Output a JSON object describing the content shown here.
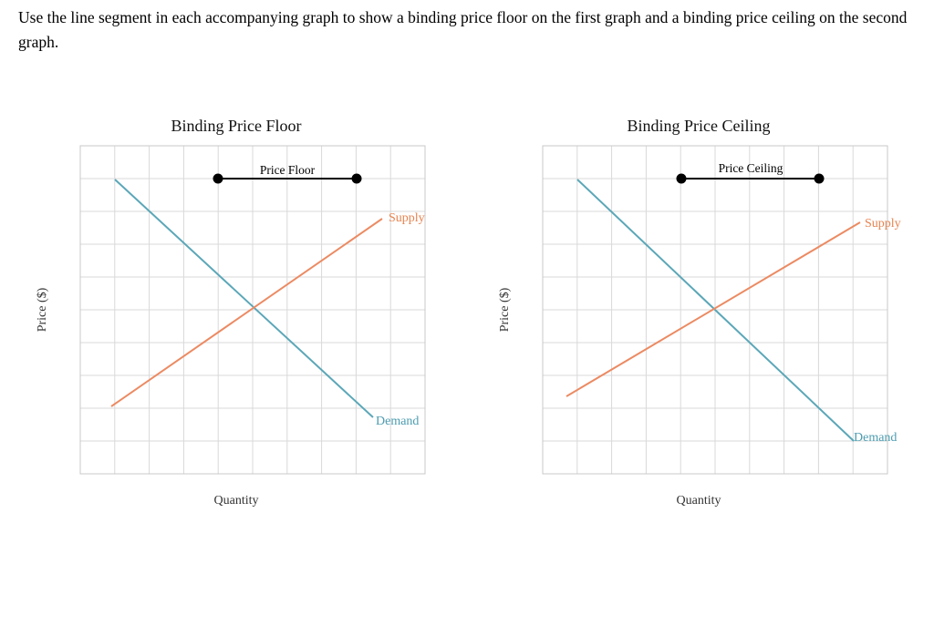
{
  "instructions": "Use the line segment in each accompanying graph to show a binding price floor on the first graph and a binding price ceiling on the second graph.",
  "graphs": [
    {
      "title": "Binding Price Floor",
      "xlabel": "Quantity",
      "ylabel": "Price ($)",
      "segment_label": "Price Floor",
      "supply_label": "Supply",
      "demand_label": "Demand"
    },
    {
      "title": "Binding Price Ceiling",
      "xlabel": "Quantity",
      "ylabel": "Price ($)",
      "segment_label": "Price Ceiling",
      "supply_label": "Supply",
      "demand_label": "Demand"
    }
  ],
  "colors": {
    "demand": "#5ba7b8",
    "supply": "#ec8a62",
    "segment": "#000000",
    "grid": "#d9d9d9"
  }
}
